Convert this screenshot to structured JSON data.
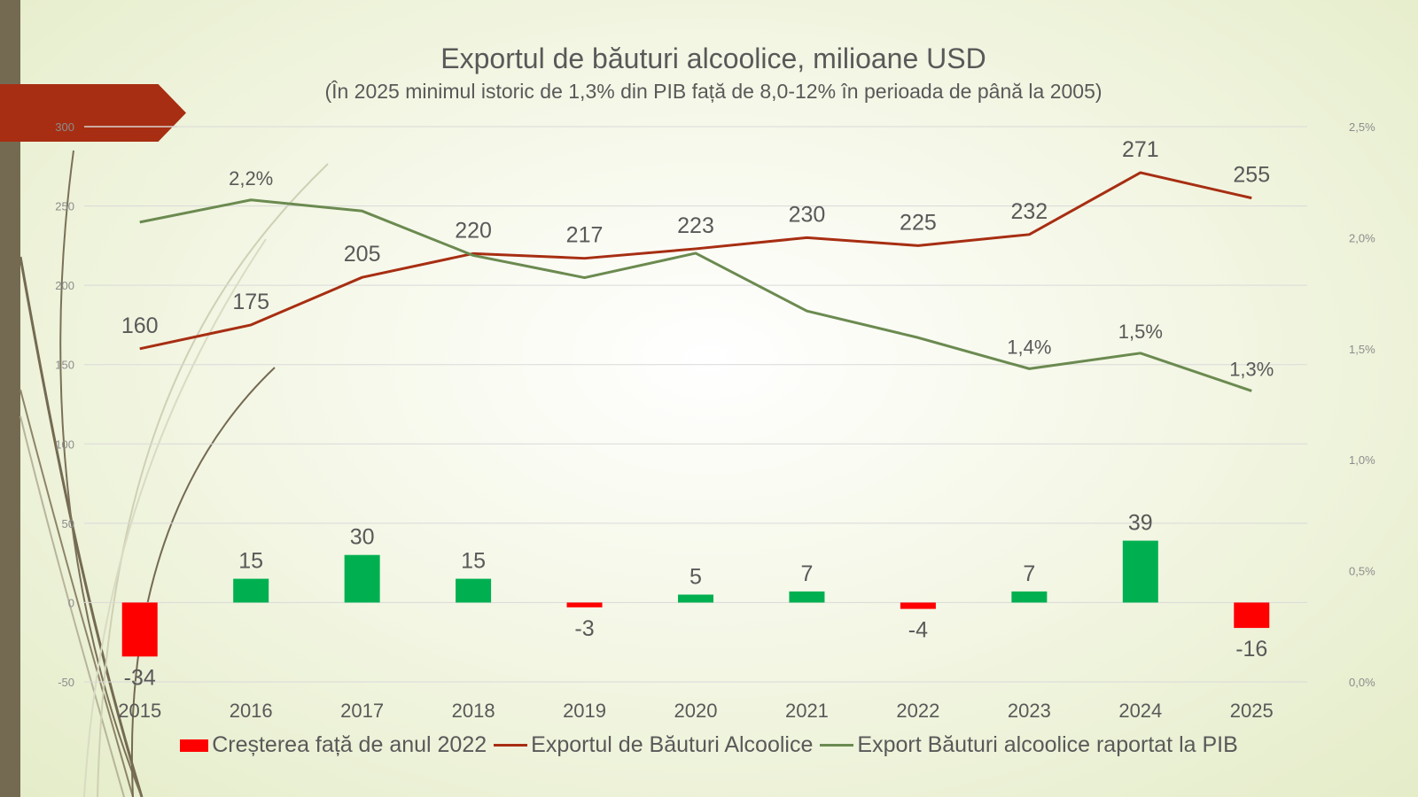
{
  "chart_data": {
    "type": "bar+line",
    "title": "Exportul de băuturi alcoolice, milioane USD",
    "subtitle": "(În 2025 minimul istoric de 1,3% din PIB față de 8,0-12% în perioada de până la 2005)",
    "categories": [
      "2015",
      "2016",
      "2017",
      "2018",
      "2019",
      "2020",
      "2021",
      "2022",
      "2023",
      "2024",
      "2025"
    ],
    "series": [
      {
        "name": "Creșterea față de anul 2022",
        "type": "bar",
        "axis": "left",
        "values": [
          -34,
          15,
          30,
          15,
          -3,
          5,
          7,
          -4,
          7,
          39,
          -16
        ],
        "labels": [
          "-34",
          "15",
          "30",
          "15",
          "-3",
          "5",
          "7",
          "-4",
          "7",
          "39",
          "-16"
        ],
        "color_positive": "#00b050",
        "color_negative": "#ff0000"
      },
      {
        "name": "Exportul de Băuturi Alcoolice",
        "type": "line",
        "axis": "left",
        "values": [
          160,
          175,
          205,
          220,
          217,
          223,
          230,
          225,
          232,
          271,
          255
        ],
        "labels": [
          "160",
          "175",
          "205",
          "220",
          "217",
          "223",
          "230",
          "225",
          "232",
          "271",
          "255"
        ],
        "color": "#a72e12"
      },
      {
        "name": "Export Băuturi alcoolice raportat la PIB",
        "type": "line",
        "axis": "right",
        "values": [
          0.0207,
          0.0217,
          0.0212,
          0.0192,
          0.0182,
          0.0193,
          0.0167,
          0.0155,
          0.0141,
          0.0148,
          0.0131
        ],
        "labels": [
          "",
          "2,2%",
          "",
          "",
          "",
          "",
          "",
          "",
          "1,4%",
          "1,5%",
          "1,3%"
        ],
        "color": "#6b8a50"
      }
    ],
    "y_left": {
      "min": -50,
      "max": 300,
      "ticks": [
        "-50",
        "0",
        "50",
        "100",
        "150",
        "200",
        "250",
        "300"
      ]
    },
    "y_right": {
      "min": 0,
      "max": 0.025,
      "ticks": [
        "0,0%",
        "0,5%",
        "1,0%",
        "1,5%",
        "2,0%",
        "2,5%"
      ]
    },
    "grid": true,
    "legend_position": "bottom"
  },
  "colors": {
    "accent_banner": "#a72e12",
    "side_band": "#746a52",
    "text": "#595959",
    "axis_text": "#8c8c8c",
    "grid": "#d9d9d9"
  }
}
